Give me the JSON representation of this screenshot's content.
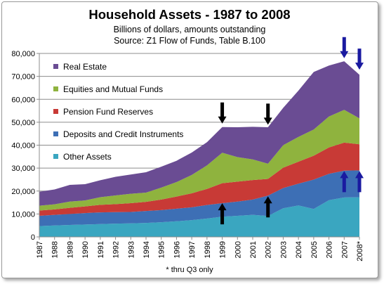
{
  "chart_data": {
    "type": "area",
    "stacked": true,
    "title": "Household Assets - 1987 to 2008",
    "subtitle_lines": [
      "Billions of dollars, amounts outstanding",
      "Source: Z1 Flow of Funds, Table B.100"
    ],
    "footnote": "* thru Q3 only",
    "categories": [
      "1987",
      "1988",
      "1989",
      "1990",
      "1991",
      "1992",
      "1993",
      "1994",
      "1995",
      "1996",
      "1997",
      "1998",
      "1999",
      "2000",
      "2001",
      "2002",
      "2003",
      "2004",
      "2005",
      "2006",
      "2007",
      "2008*"
    ],
    "ylim": [
      0,
      80000
    ],
    "yticks": [
      0,
      10000,
      20000,
      30000,
      40000,
      50000,
      60000,
      70000,
      80000
    ],
    "ytick_labels": [
      "0",
      "10,000",
      "20,000",
      "30,000",
      "40,000",
      "50,000",
      "60,000",
      "70,000",
      "80,000"
    ],
    "grid": true,
    "legend_position": "top-left",
    "series": [
      {
        "name": "Other Assets",
        "color": "#3aa6c0",
        "values": [
          4700,
          5000,
          5200,
          5400,
          5600,
          5800,
          5900,
          6100,
          6400,
          6800,
          7300,
          8000,
          8800,
          9200,
          9600,
          9100,
          12500,
          13700,
          12200,
          16000,
          17200,
          17300
        ]
      },
      {
        "name": "Deposits and Credit Instruments",
        "color": "#3d6fb5",
        "values": [
          4500,
          4600,
          4800,
          5000,
          5100,
          5000,
          5000,
          5200,
          5300,
          5500,
          5600,
          5900,
          5900,
          6200,
          6700,
          8900,
          8800,
          9500,
          12800,
          11500,
          11700,
          11700
        ]
      },
      {
        "name": "Pension Fund  Reserves",
        "color": "#c83a36",
        "values": [
          2300,
          2400,
          2700,
          2900,
          3300,
          3500,
          3800,
          4000,
          4600,
          5300,
          6100,
          7000,
          8700,
          8700,
          8500,
          7300,
          8900,
          9600,
          10400,
          11500,
          12200,
          11400
        ]
      },
      {
        "name": "Equities and Mutual Funds",
        "color": "#8fb33e",
        "values": [
          2100,
          2200,
          2700,
          2600,
          3300,
          3800,
          4100,
          4000,
          5200,
          6300,
          8000,
          10300,
          13300,
          10700,
          9000,
          6600,
          9800,
          10800,
          11400,
          13500,
          14300,
          11300
        ]
      },
      {
        "name": "Real Estate",
        "color": "#6a4c93",
        "values": [
          6100,
          6500,
          7300,
          7100,
          7400,
          8100,
          8400,
          8900,
          9100,
          9300,
          9800,
          10100,
          11200,
          13000,
          14200,
          15900,
          16300,
          20200,
          25100,
          22200,
          21200,
          19000
        ]
      }
    ],
    "annotations": [
      {
        "type": "arrow-down",
        "year": "1999",
        "value": 48500,
        "color": "#000000"
      },
      {
        "type": "arrow-down",
        "year": "2002",
        "value": 48000,
        "color": "#000000"
      },
      {
        "type": "arrow-up",
        "year": "1999",
        "value": 15000,
        "color": "#000000"
      },
      {
        "type": "arrow-up",
        "year": "2002",
        "value": 18000,
        "color": "#000000"
      },
      {
        "type": "arrow-down",
        "year": "2007",
        "value": 77000,
        "color": "#1a1aa0"
      },
      {
        "type": "arrow-down",
        "year": "2008*",
        "value": 72000,
        "color": "#1a1aa0"
      },
      {
        "type": "arrow-up",
        "year": "2007",
        "value": 29000,
        "color": "#1a1aa0"
      },
      {
        "type": "arrow-up",
        "year": "2008*",
        "value": 29000,
        "color": "#1a1aa0"
      }
    ]
  }
}
